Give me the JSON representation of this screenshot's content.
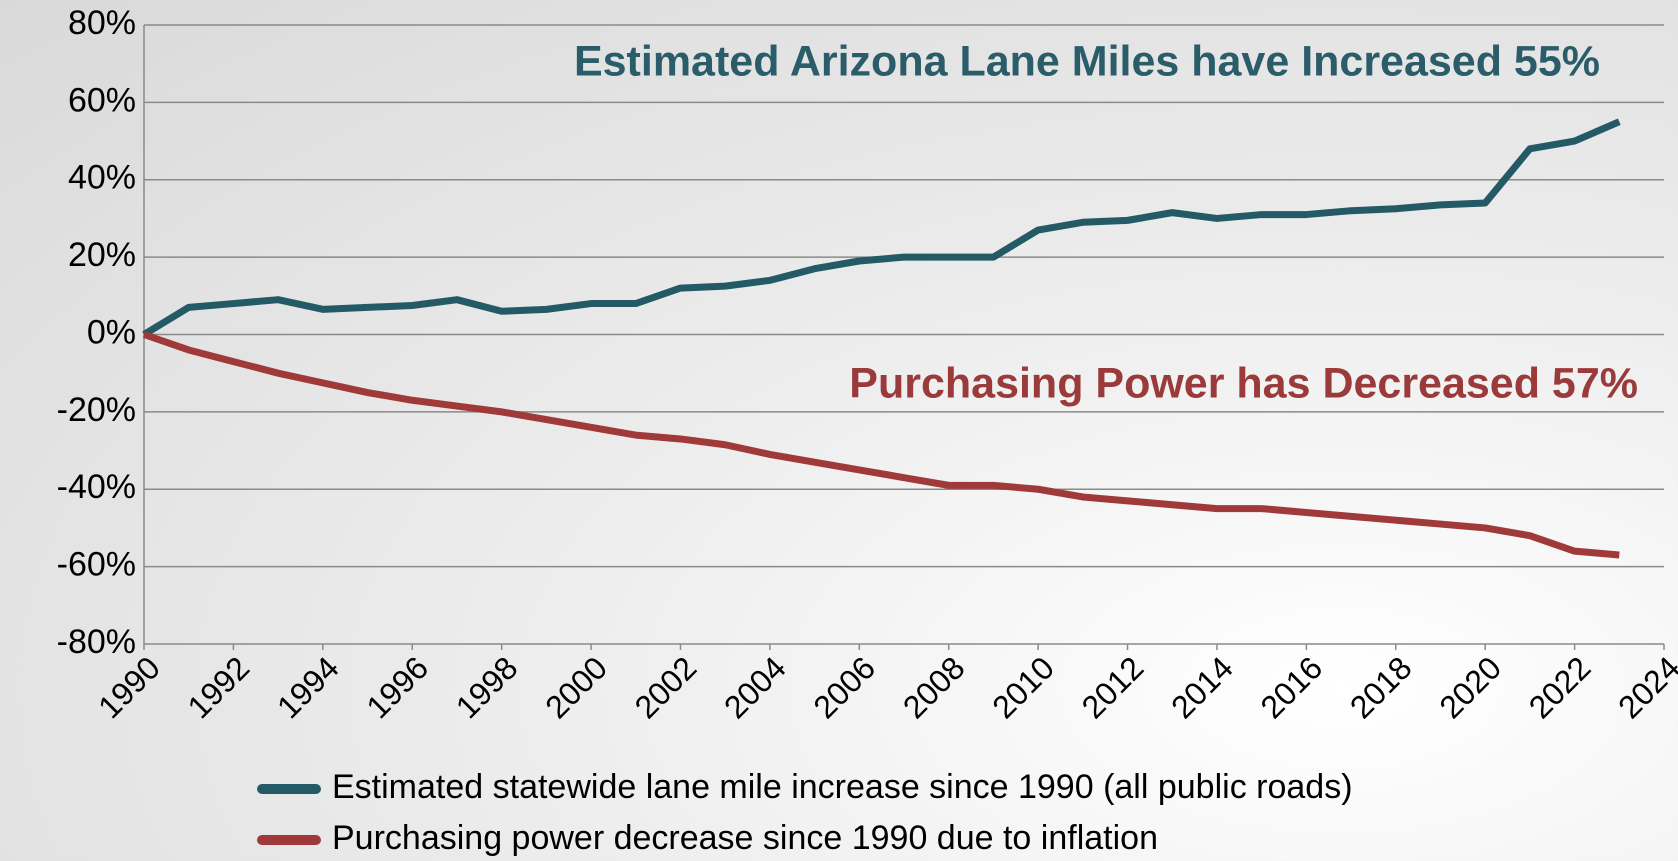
{
  "chart_data": {
    "type": "line",
    "annotations": [
      "Estimated Arizona Lane Miles have Increased 55%",
      "Purchasing Power has Decreased 57%"
    ],
    "x": [
      1990,
      1991,
      1992,
      1993,
      1994,
      1995,
      1996,
      1997,
      1998,
      1999,
      2000,
      2001,
      2002,
      2003,
      2004,
      2005,
      2006,
      2007,
      2008,
      2009,
      2010,
      2011,
      2012,
      2013,
      2014,
      2015,
      2016,
      2017,
      2018,
      2019,
      2020,
      2021,
      2022,
      2023
    ],
    "series": [
      {
        "name": "Estimated statewide lane mile increase since 1990 (all public roads)",
        "color": "#235a66",
        "values": [
          0,
          7,
          8,
          9,
          6.5,
          7,
          7.5,
          9,
          6,
          6.5,
          8,
          8,
          12,
          12.5,
          14,
          17,
          19,
          20,
          20,
          20,
          27,
          29,
          29.5,
          31.5,
          30,
          31,
          31,
          32,
          32.5,
          33.5,
          34,
          48,
          50,
          55
        ]
      },
      {
        "name": "Purchasing power decrease since 1990 due to inflation",
        "color": "#a03a3a",
        "values": [
          0,
          -4,
          -7,
          -10,
          -12.5,
          -15,
          -17,
          -18.5,
          -20,
          -22,
          -24,
          -26,
          -27,
          -28.5,
          -31,
          -33,
          -35,
          -37,
          -39,
          -39,
          -40,
          -42,
          -43,
          -44,
          -45,
          -45,
          -46,
          -47,
          -48,
          -49,
          -50,
          -52,
          -56,
          -57
        ]
      }
    ],
    "xlim": [
      1990,
      2024
    ],
    "xticks": [
      1990,
      1992,
      1994,
      1996,
      1998,
      2000,
      2002,
      2004,
      2006,
      2008,
      2010,
      2012,
      2014,
      2016,
      2018,
      2020,
      2022,
      2024
    ],
    "ylim": [
      -80,
      80
    ],
    "yticks": [
      {
        "value": -80,
        "label": "-80%"
      },
      {
        "value": -60,
        "label": "-60%"
      },
      {
        "value": -40,
        "label": "-40%"
      },
      {
        "value": -20,
        "label": "-20%"
      },
      {
        "value": 0,
        "label": "0%"
      },
      {
        "value": 20,
        "label": "20%"
      },
      {
        "value": 40,
        "label": "40%"
      },
      {
        "value": 60,
        "label": "60%"
      },
      {
        "value": 80,
        "label": "80%"
      }
    ],
    "grid": true,
    "legend": "bottom"
  }
}
